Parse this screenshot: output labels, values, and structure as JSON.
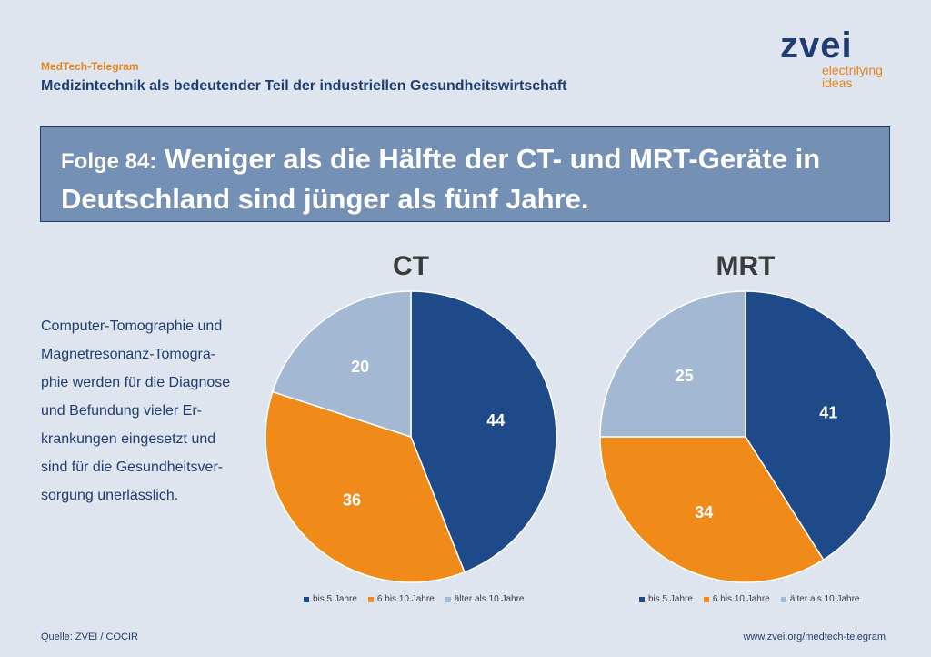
{
  "header": {
    "brand": "MedTech-Telegram",
    "title": "Medizintechnik als bedeutender Teil der industriellen Gesundheitswirtschaft"
  },
  "logo": {
    "word": "zvei",
    "tag_line1": "electrifying",
    "tag_line2": "ideas"
  },
  "banner": {
    "episode": "Folge 84:",
    "headline_part1": "Weniger als die Hälfte der CT- und MRT-Geräte in",
    "headline_part2": "Deutschland sind jünger als fünf Jahre."
  },
  "description": {
    "lines": [
      "Computer-Tomographie und",
      "Magnetresonanz-Tomogra-",
      "phie werden für die Diagnose",
      "und Befundung vieler Er-",
      "krankungen eingesetzt und",
      "sind für die Gesundheitsver-",
      "sorgung unerlässlich."
    ]
  },
  "colors": {
    "bis_5": "#1f4a8a",
    "6_bis_10": "#f08b1a",
    "aelter_10": "#a3b8d3"
  },
  "chart_data": [
    {
      "type": "pie",
      "title": "CT",
      "categories": [
        "bis 5 Jahre",
        "6 bis 10 Jahre",
        "älter als 10 Jahre"
      ],
      "values": [
        44,
        36,
        20
      ],
      "legend": "bottom"
    },
    {
      "type": "pie",
      "title": "MRT",
      "categories": [
        "bis 5 Jahre",
        "6 bis 10 Jahre",
        "älter als 10 Jahre"
      ],
      "values": [
        41,
        34,
        25
      ],
      "legend": "bottom"
    }
  ],
  "footer": {
    "source": "Quelle: ZVEI / COCIR",
    "url": "www.zvei.org/medtech-telegram"
  }
}
